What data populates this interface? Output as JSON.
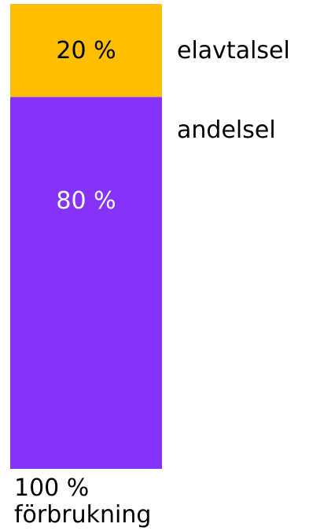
{
  "chart_data": {
    "type": "bar",
    "stacked": true,
    "categories": [
      "100 % förbrukning"
    ],
    "series": [
      {
        "name": "andelsel",
        "values": [
          80
        ],
        "label": "80 %",
        "color": "#8533f8",
        "text_color": "#ffffff"
      },
      {
        "name": "elavtalsel",
        "values": [
          20
        ],
        "label": "20 %",
        "color": "#fdbf00",
        "text_color": "#000000"
      }
    ],
    "ylim": [
      0,
      100
    ],
    "total_value": "100 %",
    "total_caption": "förbrukning",
    "legend_position": "right"
  }
}
